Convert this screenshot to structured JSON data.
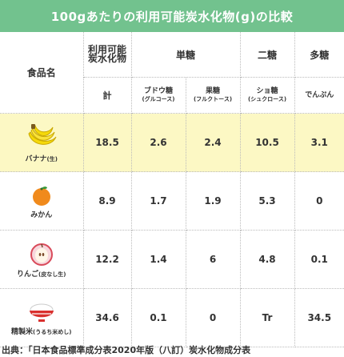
{
  "title": "100gあたりの利用可能炭水化物(g)の比較",
  "header": {
    "food": "食品名",
    "available_line1": "利用可能",
    "available_line2": "炭水化物",
    "group_mono": "単糖",
    "group_di": "二糖",
    "group_poly": "多糖",
    "total": "計",
    "glucose": "ブドウ糖",
    "glucose_sub": "(グルコース)",
    "fructose": "果糖",
    "fructose_sub": "(フルクトース)",
    "sucrose": "ショ糖",
    "sucrose_sub": "(シュクロース)",
    "starch": "でんぷん"
  },
  "rows": [
    {
      "name": "バナナ",
      "suffix": "(生)",
      "icon": "banana-icon",
      "total": "18.5",
      "glucose": "2.6",
      "fructose": "2.4",
      "sucrose": "10.5",
      "starch": "3.1"
    },
    {
      "name": "みかん",
      "suffix": "",
      "icon": "mandarin-icon",
      "total": "8.9",
      "glucose": "1.7",
      "fructose": "1.9",
      "sucrose": "5.3",
      "starch": "0"
    },
    {
      "name": "りんご",
      "suffix": "(皮なし生)",
      "icon": "apple-icon",
      "total": "12.2",
      "glucose": "1.4",
      "fructose": "6",
      "sucrose": "4.8",
      "starch": "0.1"
    },
    {
      "name": "精製米",
      "suffix": "(うるち米めし)",
      "icon": "rice-bowl-icon",
      "total": "34.6",
      "glucose": "0.1",
      "fructose": "0",
      "sucrose": "Tr",
      "starch": "34.5"
    }
  ],
  "colors": {
    "title_bg": "#72c28e",
    "highlight_row": "#fcf8c4",
    "banana": "#f5d90a",
    "mandarin": "#f08a1c",
    "apple": "#d94a5a",
    "bowl": "#d9302e"
  },
  "footer": "出典：「日本食品標準成分表2020年版（八訂）炭水化物成分表"
}
